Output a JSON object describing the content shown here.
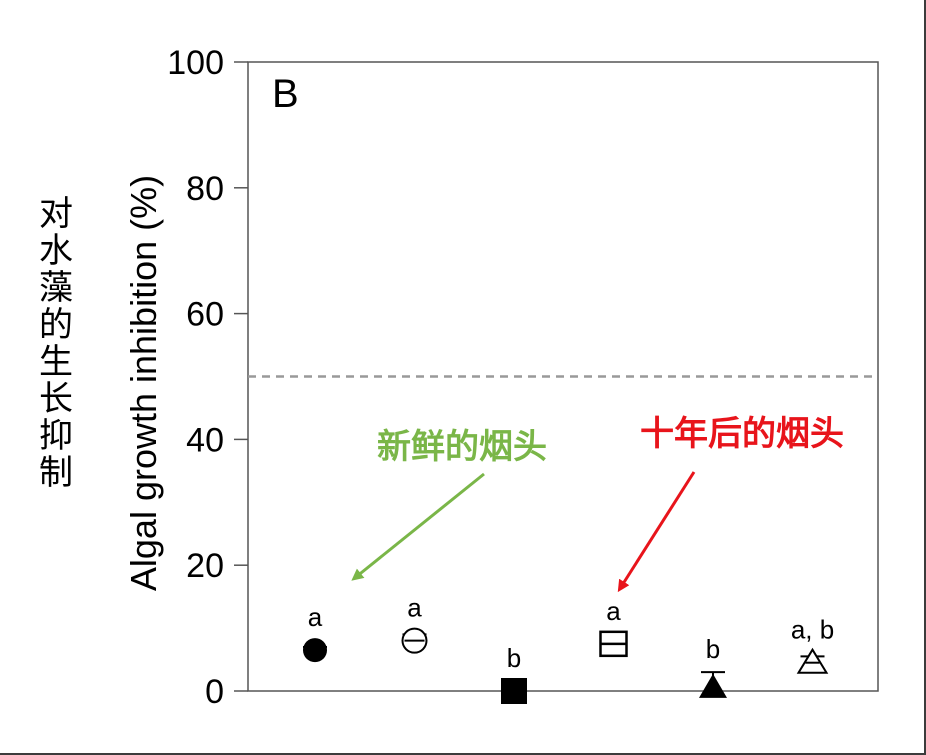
{
  "side_label": "对水藻的生长抑制",
  "chart_data": {
    "type": "scatter",
    "panel_label": "B",
    "ylabel": "Algal growth inhibition (%)",
    "xlabel": "",
    "ylim": [
      0,
      100
    ],
    "yticks": [
      0,
      20,
      40,
      60,
      80,
      100
    ],
    "grid": false,
    "reference_line": {
      "y": 50,
      "style": "dashed"
    },
    "points": [
      {
        "value": 6.5,
        "error": 0.5,
        "marker": "filled-circle",
        "letter": "a"
      },
      {
        "value": 8.0,
        "error": 1.0,
        "marker": "open-circle-striped",
        "letter": "a"
      },
      {
        "value": 0.0,
        "error": 0.0,
        "marker": "filled-square",
        "letter": "b"
      },
      {
        "value": 7.5,
        "error": 1.0,
        "marker": "open-square-striped",
        "letter": "a"
      },
      {
        "value": 0.5,
        "error": 2.5,
        "marker": "filled-triangle",
        "letter": "b"
      },
      {
        "value": 4.5,
        "error": 1.0,
        "marker": "open-triangle-striped",
        "letter": "a, b"
      }
    ],
    "annotations": [
      {
        "text": "新鲜的烟头",
        "color": "#7ab648",
        "points_to_index": 0
      },
      {
        "text": "十年后的烟头",
        "color": "#e8141b",
        "points_to_index": 3
      }
    ]
  }
}
